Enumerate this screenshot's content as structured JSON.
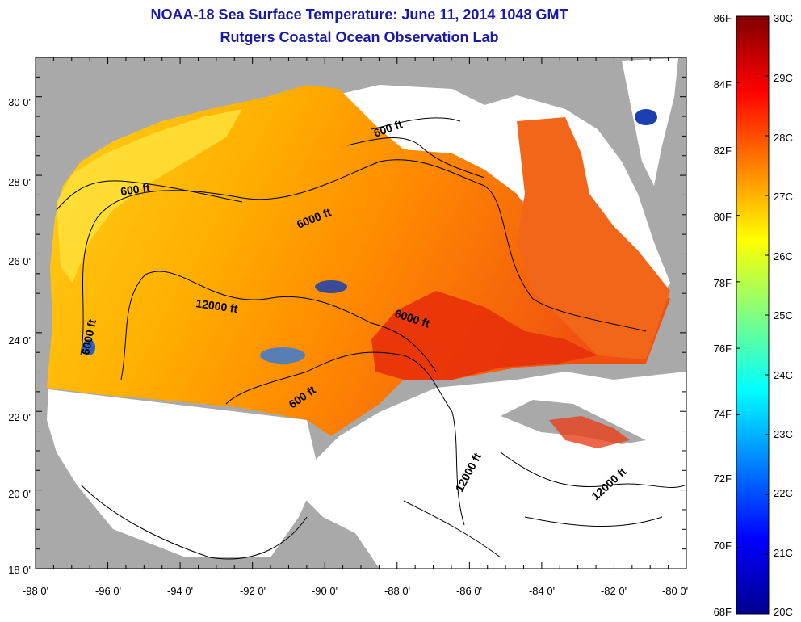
{
  "header": {
    "title": "NOAA-18 Sea Surface Temperature:  June 11, 2014 1048 GMT",
    "subtitle": "Rutgers Coastal Ocean Observation Lab"
  },
  "axes": {
    "x_ticks": [
      "-98 0'",
      "-96 0'",
      "-94 0'",
      "-92 0'",
      "-90 0'",
      "-88 0'",
      "-86 0'",
      "-84 0'",
      "-82 0'",
      "-80 0'"
    ],
    "y_ticks": [
      "30 0'",
      "28 0'",
      "26 0'",
      "24 0'",
      "22 0'",
      "20 0'",
      "18 0'"
    ]
  },
  "contour_labels": [
    "600 ft",
    "600 ft",
    "6000 ft",
    "12000 ft",
    "6000 ft",
    "6000 ft",
    "600 ft",
    "12000 ft",
    "12000 ft"
  ],
  "colorbar": {
    "fahrenheit": [
      "86F",
      "84F",
      "82F",
      "80F",
      "78F",
      "76F",
      "74F",
      "72F",
      "70F",
      "68F"
    ],
    "celsius": [
      "30C",
      "29C",
      "28C",
      "27C",
      "26C",
      "25C",
      "24C",
      "23C",
      "22C",
      "21C",
      "20C"
    ],
    "colors": [
      "#00008f",
      "#0000ff",
      "#0080ff",
      "#00ffff",
      "#80ff80",
      "#ffff00",
      "#ff8000",
      "#ff0000",
      "#800000"
    ]
  },
  "colors": {
    "land": "#a9a9a9",
    "no_data": "#ffffff",
    "warm_sst": "#ff8c00",
    "hot_sst": "#e8300a",
    "cool_sst": "#ffd700",
    "title": "#1a1aa6"
  }
}
